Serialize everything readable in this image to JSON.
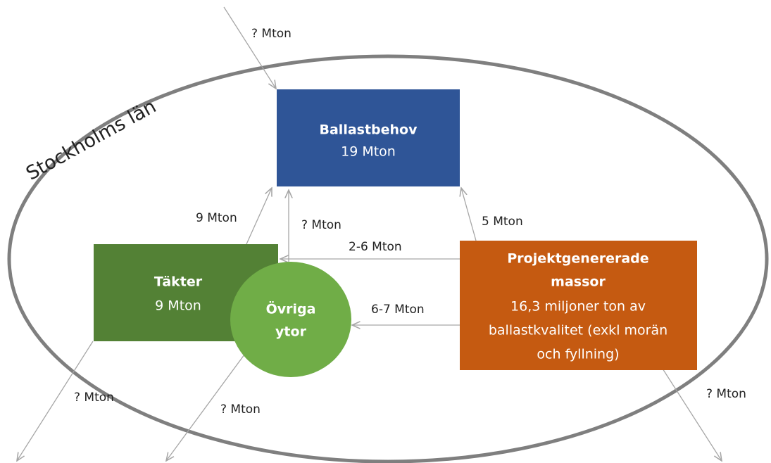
{
  "region": "Stockholms län",
  "nodes": [
    {
      "lines": [
        "Ballastbehov",
        "19 Mton"
      ]
    },
    {
      "lines": [
        "Täkter",
        "9 Mton"
      ]
    },
    {
      "lines": [
        "Övriga",
        "ytor"
      ]
    },
    {
      "lines": [
        "Projektgenererade",
        "massor",
        "16,3 miljoner ton av",
        "ballastkvalitet (exkl morän",
        "och fyllning)"
      ]
    }
  ],
  "edges": [
    {
      "label": "? Mton"
    },
    {
      "label": "9 Mton"
    },
    {
      "label": "? Mton"
    },
    {
      "label": "5 Mton"
    },
    {
      "label": "2-6 Mton"
    },
    {
      "label": "6-7 Mton"
    },
    {
      "label": "? Mton"
    },
    {
      "label": "? Mton"
    },
    {
      "label": "? Mton"
    }
  ]
}
